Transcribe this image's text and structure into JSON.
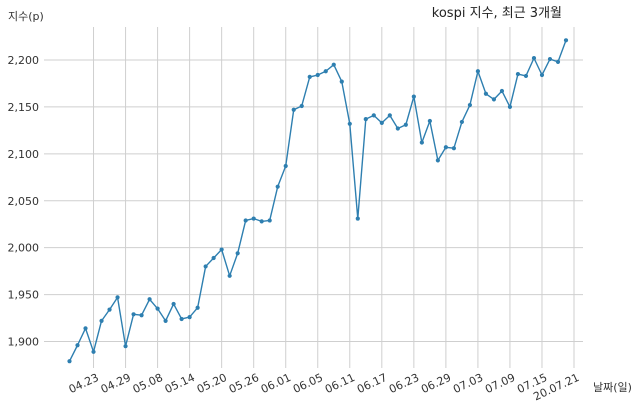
{
  "chart_data": {
    "type": "line",
    "title": "kospi 지수, 최근 3개월",
    "ylabel": "지수(p)",
    "xlabel": "날짜(일)",
    "ylim": [
      1870,
      2230
    ],
    "yticks": [
      1900,
      1950,
      2000,
      2050,
      2100,
      2150,
      2200
    ],
    "ytick_labels": [
      "1,900",
      "1,950",
      "2,000",
      "2,050",
      "2,100",
      "2,150",
      "2,200"
    ],
    "xtick_labels": [
      "04.23",
      "04.29",
      "05.08",
      "05.14",
      "05.20",
      "05.26",
      "06.01",
      "06.05",
      "06.11",
      "06.17",
      "06.23",
      "06.29",
      "07.03",
      "07.09",
      "07.15",
      "20.07.21"
    ],
    "xtick_positions": [
      3,
      7,
      11,
      15,
      19,
      23,
      27,
      31,
      35,
      39,
      43,
      47,
      51,
      55,
      59,
      63
    ],
    "grid": true,
    "color": "#2e7fb0",
    "series": [
      {
        "values": [
          1879,
          1896,
          1914,
          1889,
          1922,
          1934,
          1947,
          1895,
          1929,
          1928,
          1945,
          1935,
          1922,
          1940,
          1924,
          1926,
          1936,
          1980,
          1989,
          1998,
          1970,
          1994,
          2029,
          2031,
          2028,
          2029,
          2065,
          2087,
          2147,
          2151,
          2182,
          2184,
          2188,
          2195,
          2177,
          2132,
          2031,
          2137,
          2141,
          2133,
          2141,
          2127,
          2131,
          2161,
          2112,
          2135,
          2093,
          2107,
          2106,
          2134,
          2152,
          2188,
          2164,
          2158,
          2167,
          2150,
          2185,
          2183,
          2202,
          2184,
          2201,
          2198,
          2221
        ]
      }
    ]
  }
}
